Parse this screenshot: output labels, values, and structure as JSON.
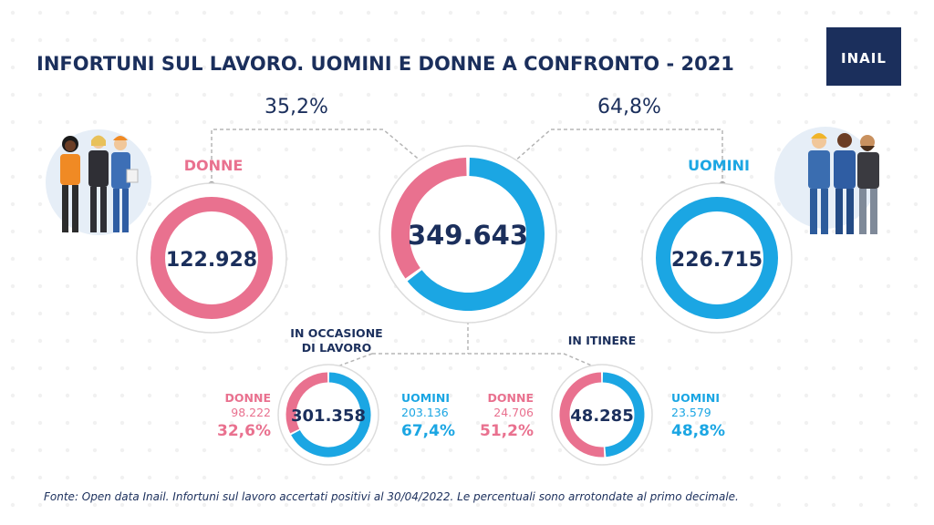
{
  "header": {
    "title": "INFORTUNI SUL LAVORO. UOMINI E DONNE A CONFRONTO - 2021",
    "logo_text": "INAIL"
  },
  "colors": {
    "women": "#e9718f",
    "men": "#1ba6e3",
    "navy": "#1b2f5c",
    "ring_outline": "#dcdcdc",
    "dots": "#f1f1f1",
    "line": "#b5b5b5"
  },
  "chart_data": [
    {
      "type": "pie",
      "name_key": "totale",
      "total_label": "349.643",
      "labels": [
        "DONNE",
        "UOMINI"
      ],
      "values": [
        122928,
        226715
      ],
      "value_labels": [
        "122.928",
        "226.715"
      ],
      "percent_labels": [
        "35,2%",
        "64,8%"
      ]
    },
    {
      "type": "pie",
      "title": "IN OCCASIONE DI LAVORO",
      "total_label": "301.358",
      "labels": [
        "DONNE",
        "UOMINI"
      ],
      "values": [
        98222,
        203136
      ],
      "value_labels": [
        "98.222",
        "203.136"
      ],
      "percent_labels": [
        "32,6%",
        "67,4%"
      ]
    },
    {
      "type": "pie",
      "title": "IN ITINERE",
      "total_label": "48.285",
      "labels": [
        "DONNE",
        "UOMINI"
      ],
      "values": [
        24706,
        23579
      ],
      "value_labels": [
        "24.706",
        "23.579"
      ],
      "percent_labels": [
        "51,2%",
        "48,8%"
      ]
    }
  ],
  "labels": {
    "donne": "DONNE",
    "uomini": "UOMINI",
    "occasione_line1": "IN OCCASIONE",
    "occasione_line2": "DI LAVORO",
    "itinere": "IN ITINERE"
  },
  "icons": [
    "women-workers-illustration",
    "men-workers-illustration",
    "inail-logo"
  ],
  "footer": {
    "source": "Fonte: Open data Inail. Infortuni sul lavoro accertati positivi al 30/04/2022.  Le percentuali sono arrotondate al primo decimale."
  }
}
